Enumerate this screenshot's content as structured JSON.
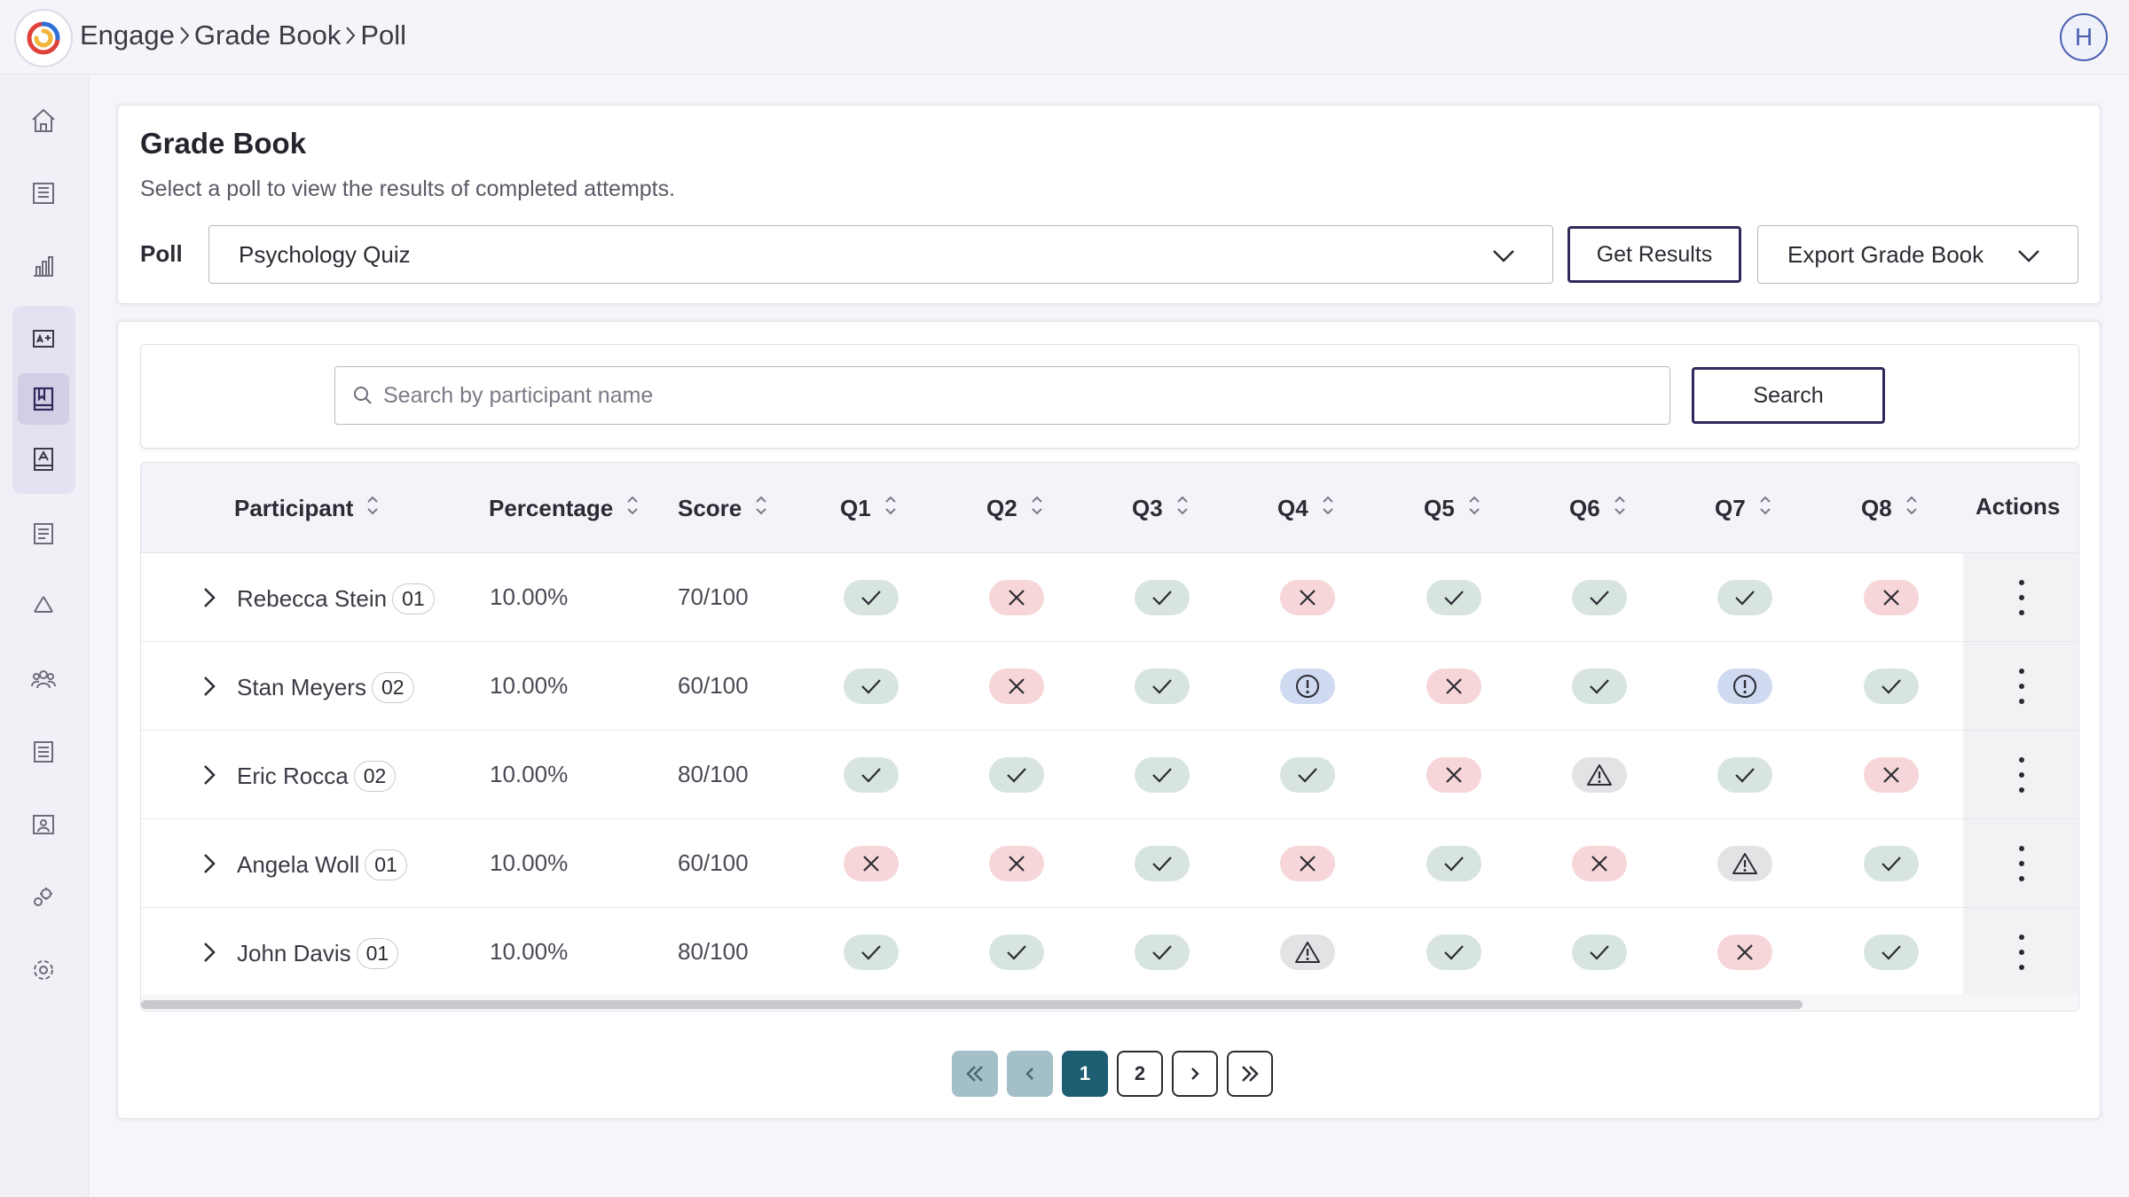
{
  "breadcrumb": [
    "Engage",
    "Grade Book",
    "Poll"
  ],
  "user": {
    "initial": "H"
  },
  "sidebar": {
    "icons": [
      "home-icon",
      "library-icon",
      "analytics-icon",
      "assessment-icon",
      "gradebook-icon",
      "grades-icon",
      "reports-icon",
      "recycle-icon",
      "groups-icon",
      "documents-icon",
      "gallery-icon",
      "integrations-icon",
      "settings-icon"
    ],
    "active": "gradebook-icon"
  },
  "gradebook": {
    "title": "Grade Book",
    "subtitle": "Select a poll to view the results of completed attempts.",
    "poll_label": "Poll",
    "poll_value": "Psychology Quiz",
    "get_results_label": "Get Results",
    "export_label": "Export Grade Book"
  },
  "search": {
    "placeholder": "Search by participant name",
    "button_label": "Search"
  },
  "table": {
    "headers": {
      "participant": "Participant",
      "percentage": "Percentage",
      "score": "Score",
      "q": [
        "Q1",
        "Q2",
        "Q3",
        "Q4",
        "Q5",
        "Q6",
        "Q7",
        "Q8"
      ],
      "actions": "Actions"
    },
    "rows": [
      {
        "name": "Rebecca Stein",
        "attempt": "01",
        "percentage": "10.00%",
        "score": "70/100",
        "answers": [
          "correct",
          "wrong",
          "correct",
          "wrong",
          "correct",
          "correct",
          "correct",
          "wrong"
        ]
      },
      {
        "name": "Stan Meyers",
        "attempt": "02",
        "percentage": "10.00%",
        "score": "60/100",
        "answers": [
          "correct",
          "wrong",
          "correct",
          "info",
          "wrong",
          "correct",
          "info",
          "correct"
        ]
      },
      {
        "name": "Eric Rocca",
        "attempt": "02",
        "percentage": "10.00%",
        "score": "80/100",
        "answers": [
          "correct",
          "correct",
          "correct",
          "correct",
          "wrong",
          "warn",
          "correct",
          "wrong"
        ]
      },
      {
        "name": "Angela Woll",
        "attempt": "01",
        "percentage": "10.00%",
        "score": "60/100",
        "answers": [
          "wrong",
          "wrong",
          "correct",
          "wrong",
          "correct",
          "wrong",
          "warn",
          "correct"
        ]
      },
      {
        "name": "John Davis",
        "attempt": "01",
        "percentage": "10.00%",
        "score": "80/100",
        "answers": [
          "correct",
          "correct",
          "correct",
          "warn",
          "correct",
          "correct",
          "wrong",
          "correct"
        ]
      }
    ]
  },
  "pagination": {
    "pages": [
      "1",
      "2"
    ],
    "current": "1"
  },
  "colors": {
    "accent": "#1d5e73",
    "button_border": "#2f2a5c",
    "correct_bg": "#d8e5df",
    "wrong_bg": "#f6d6d8",
    "info_bg": "#cfd9f0",
    "warn_bg": "#e3e3e6"
  }
}
